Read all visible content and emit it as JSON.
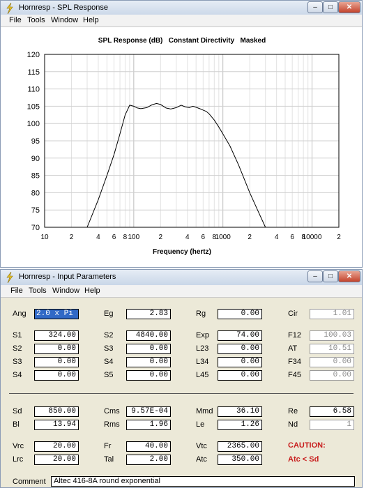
{
  "spl_window": {
    "title": "Hornresp - SPL Response",
    "menu": [
      "File",
      "Tools",
      "Window",
      "Help"
    ],
    "chart_title": "SPL Response (dB)   Constant Directivity   Masked",
    "xlabel": "Frequency (hertz)"
  },
  "chart_data": {
    "type": "line",
    "title": "SPL Response (dB)   Constant Directivity   Masked",
    "xlabel": "Frequency (hertz)",
    "ylabel": "",
    "xscale": "log",
    "xlim": [
      10,
      20000
    ],
    "ylim": [
      70,
      120
    ],
    "grid": true,
    "y_ticks": [
      "120",
      "115",
      "110",
      "105",
      "100",
      "95",
      "90",
      "85",
      "80",
      "75",
      "70"
    ],
    "x_ticks": [
      {
        "f": 10,
        "label": "10"
      },
      {
        "f": 20,
        "label": "2"
      },
      {
        "f": 40,
        "label": "4"
      },
      {
        "f": 60,
        "label": "6"
      },
      {
        "f": 80,
        "label": "8"
      },
      {
        "f": 100,
        "label": "100"
      },
      {
        "f": 200,
        "label": "2"
      },
      {
        "f": 400,
        "label": "4"
      },
      {
        "f": 600,
        "label": "6"
      },
      {
        "f": 800,
        "label": "8"
      },
      {
        "f": 1000,
        "label": "1000"
      },
      {
        "f": 2000,
        "label": "2"
      },
      {
        "f": 4000,
        "label": "4"
      },
      {
        "f": 6000,
        "label": "6"
      },
      {
        "f": 8000,
        "label": "8"
      },
      {
        "f": 10000,
        "label": "10000"
      },
      {
        "f": 20000,
        "label": "2"
      }
    ],
    "series": [
      {
        "color": "#000000",
        "x": [
          30,
          40,
          50,
          60,
          70,
          80,
          90,
          100,
          110,
          120,
          140,
          160,
          180,
          200,
          230,
          260,
          300,
          340,
          380,
          420,
          460,
          500,
          550,
          600,
          650,
          700,
          800,
          900,
          1000,
          1200,
          1500,
          2000,
          2500,
          3000
        ],
        "y": [
          70,
          78,
          85,
          91,
          97,
          102.5,
          105.3,
          105,
          104.5,
          104.3,
          104.6,
          105.4,
          105.8,
          105.5,
          104.5,
          104.2,
          104.6,
          105.3,
          104.8,
          104.6,
          105,
          104.7,
          104.3,
          103.9,
          103.5,
          102.8,
          101,
          99,
          97,
          93.5,
          88,
          80,
          74.5,
          70
        ]
      }
    ]
  },
  "input_window": {
    "title": "Hornresp - Input Parameters",
    "menu": [
      "File",
      "Tools",
      "Window",
      "Help"
    ],
    "rows1": [
      [
        {
          "label": "Ang",
          "value": "2.0 x Pi",
          "selected": true
        },
        {
          "label": "Eg",
          "value": "2.83"
        },
        {
          "label": "Rg",
          "value": "0.00"
        },
        {
          "label": "Cir",
          "value": "1.01",
          "readonly": true
        }
      ]
    ],
    "rows2": [
      [
        {
          "label": "S1",
          "value": "324.00"
        },
        {
          "label": "S2",
          "value": "4840.00"
        },
        {
          "label": "Exp",
          "value": "74.00"
        },
        {
          "label": "F12",
          "value": "100.03",
          "readonly": true
        }
      ],
      [
        {
          "label": "S2",
          "value": "0.00"
        },
        {
          "label": "S3",
          "value": "0.00"
        },
        {
          "label": "L23",
          "value": "0.00"
        },
        {
          "label": "AT",
          "value": "10.51",
          "readonly": true
        }
      ],
      [
        {
          "label": "S3",
          "value": "0.00"
        },
        {
          "label": "S4",
          "value": "0.00"
        },
        {
          "label": "L34",
          "value": "0.00"
        },
        {
          "label": "F34",
          "value": "0.00",
          "readonly": true
        }
      ],
      [
        {
          "label": "S4",
          "value": "0.00"
        },
        {
          "label": "S5",
          "value": "0.00"
        },
        {
          "label": "L45",
          "value": "0.00"
        },
        {
          "label": "F45",
          "value": "0.00",
          "readonly": true
        }
      ]
    ],
    "rows3": [
      [
        {
          "label": "Sd",
          "value": "850.00"
        },
        {
          "label": "Cms",
          "value": "9.57E-04"
        },
        {
          "label": "Mmd",
          "value": "36.10"
        },
        {
          "label": "Re",
          "value": "6.58"
        }
      ],
      [
        {
          "label": "Bl",
          "value": "13.94"
        },
        {
          "label": "Rms",
          "value": "1.96"
        },
        {
          "label": "Le",
          "value": "1.26"
        },
        {
          "label": "Nd",
          "value": "1",
          "readonly": true
        }
      ]
    ],
    "rows4": [
      [
        {
          "label": "Vrc",
          "value": "20.00"
        },
        {
          "label": "Fr",
          "value": "40.00"
        },
        {
          "label": "Vtc",
          "value": "2365.00"
        }
      ],
      [
        {
          "label": "Lrc",
          "value": "20.00"
        },
        {
          "label": "Tal",
          "value": "2.00"
        },
        {
          "label": "Atc",
          "value": "350.00"
        }
      ]
    ],
    "caution_title": "CAUTION:",
    "caution_text": "Atc < Sd",
    "comment_label": "Comment",
    "comment_value": "Altec 416-8A round exponential"
  }
}
